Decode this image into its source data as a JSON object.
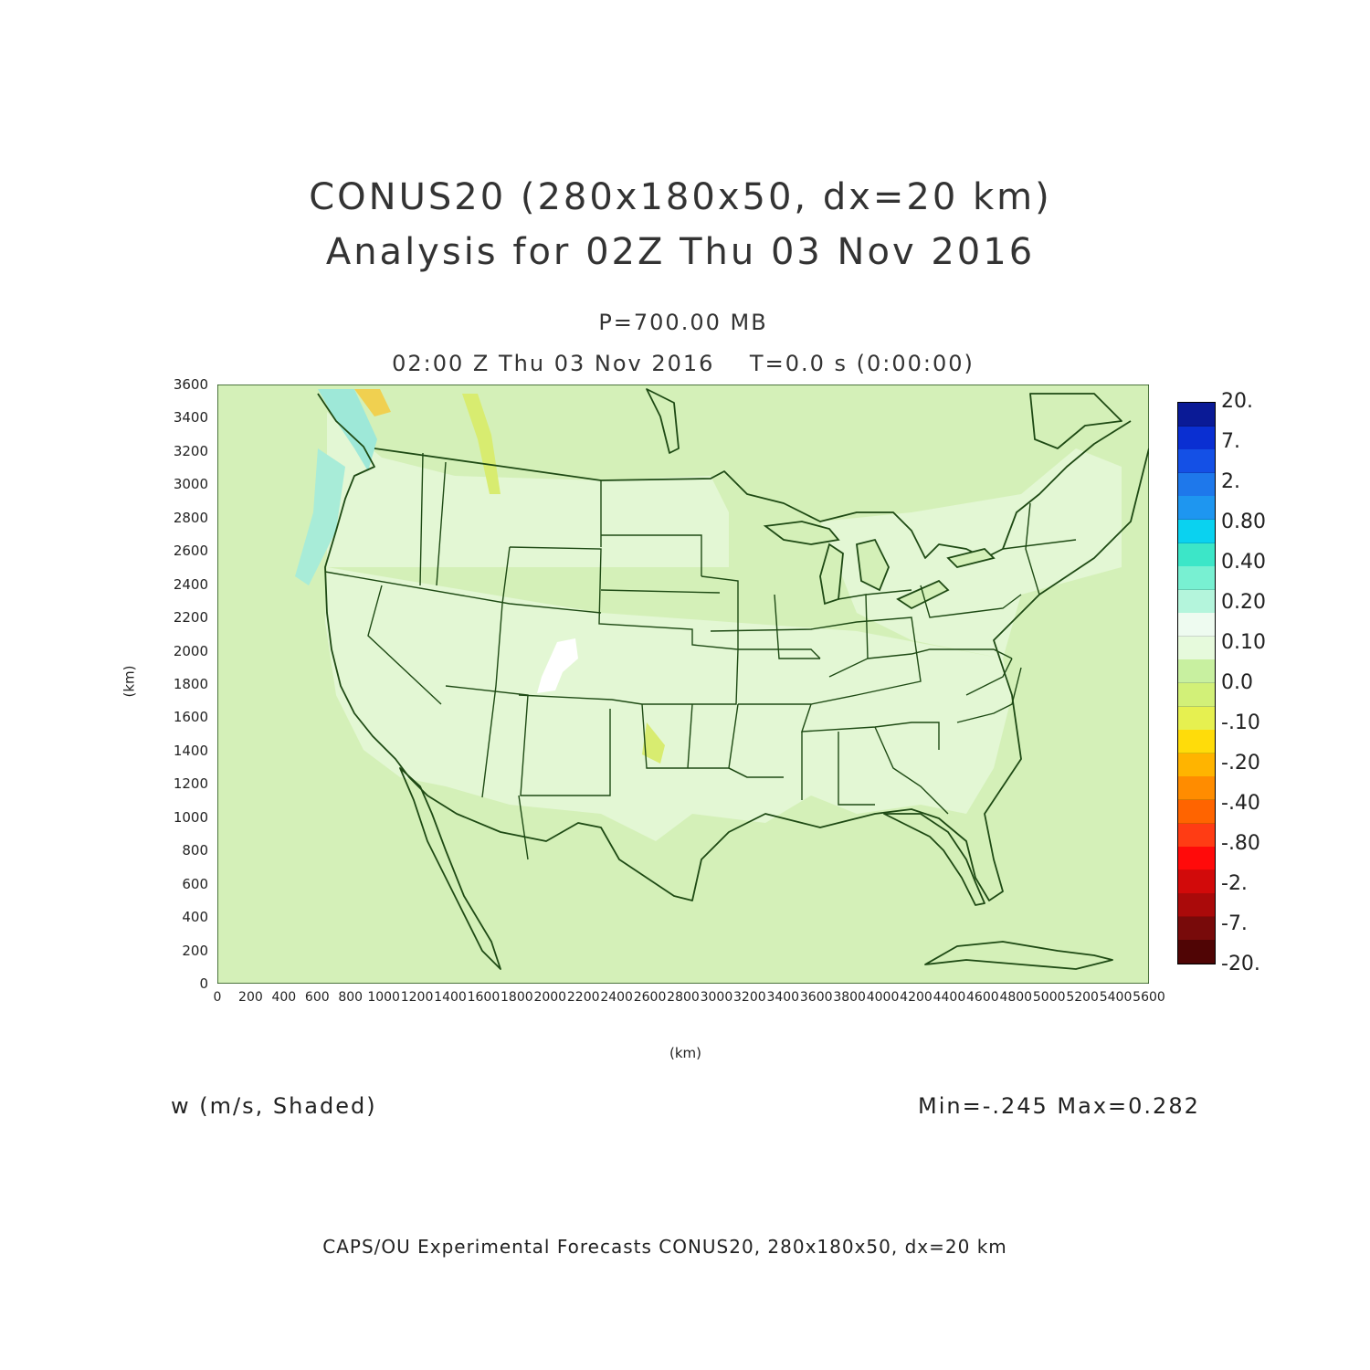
{
  "title_line1": "CONUS20 (280x180x50, dx=20 km)",
  "title_line2": "Analysis for 02Z Thu 03 Nov 2016",
  "level_label": "P=700.00 MB",
  "time_label": "02:00 Z Thu 03 Nov 2016    T=0.0 s (0:00:00)",
  "y_axis": {
    "unit": "(km)",
    "ticks": [
      "0",
      "200",
      "400",
      "600",
      "800",
      "1000",
      "1200",
      "1400",
      "1600",
      "1800",
      "2000",
      "2200",
      "2400",
      "2600",
      "2800",
      "3000",
      "3200",
      "3400",
      "3600"
    ],
    "range": [
      0,
      3600
    ]
  },
  "x_axis": {
    "unit": "(km)",
    "ticks": [
      "0",
      "200",
      "400",
      "600",
      "800",
      "1000",
      "1200",
      "1400",
      "1600",
      "1800",
      "2000",
      "2200",
      "2400",
      "2600",
      "2800",
      "3000",
      "3200",
      "3400",
      "3600",
      "3800",
      "4000",
      "4200",
      "4400",
      "4600",
      "4800",
      "5000",
      "5200",
      "5400",
      "5600"
    ],
    "range": [
      0,
      5600
    ]
  },
  "colorbar": {
    "labels": [
      "20.",
      "7.",
      "2.",
      "0.80",
      "0.40",
      "0.20",
      "0.10",
      "0.0",
      "-.10",
      "-.20",
      "-.40",
      "-.80",
      "-2.",
      "-7.",
      "-20."
    ],
    "colors": [
      "#0a1a96",
      "#0a2fd2",
      "#1450e6",
      "#1e78eb",
      "#1e96f0",
      "#0ad2f0",
      "#3ce6c8",
      "#78f0d2",
      "#b4f5dc",
      "#eefbf0",
      "#e6fadc",
      "#c8f0a0",
      "#d2f078",
      "#e6f050",
      "#ffdc0a",
      "#ffb400",
      "#ff8c00",
      "#ff6400",
      "#ff3c14",
      "#ff0a0a",
      "#d20a0a",
      "#aa0a0a",
      "#780a0a",
      "#500505"
    ]
  },
  "field_label": "w (m/s, Shaded)",
  "stats": "Min=-.245 Max=0.282",
  "credit": "CAPS/OU Experimental Forecasts  CONUS20, 280x180x50, dx=20 km",
  "map": {
    "background_color": "#d4f0b8",
    "line_color": "#1e4a14"
  }
}
